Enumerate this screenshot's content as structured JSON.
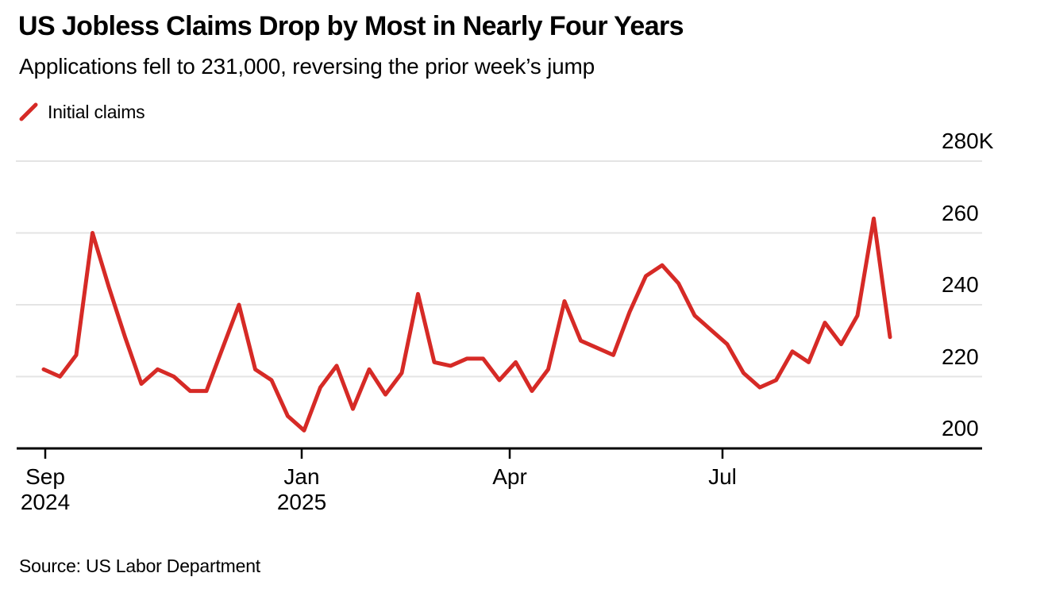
{
  "header": {
    "title": "US Jobless Claims Drop by Most in Nearly Four Years",
    "subtitle": "Applications fell to 231,000, reversing the prior week’s jump"
  },
  "legend": {
    "label": "Initial claims"
  },
  "source_note": "Source: US Labor Department",
  "colors": {
    "line": "#d62a26",
    "grid": "#e4e4e4",
    "axis": "#000000",
    "text": "#000000",
    "background": "#ffffff"
  },
  "chart_data": {
    "type": "line",
    "title": "US Jobless Claims Drop by Most in Nearly Four Years",
    "subtitle": "Applications fell to 231,000, reversing the prior week’s jump",
    "series_name": "Initial claims",
    "unit": "thousands of claims, weekly",
    "x_range": [
      "Sep 2024",
      "Sep 2025"
    ],
    "ylim": [
      200,
      280
    ],
    "grid": "horizontal",
    "legend_position": "top-left",
    "values": [
      222,
      220,
      226,
      260,
      245,
      231,
      218,
      222,
      220,
      216,
      216,
      228,
      240,
      222,
      219,
      209,
      205,
      217,
      223,
      211,
      222,
      215,
      221,
      243,
      224,
      223,
      225,
      225,
      219,
      224,
      216,
      222,
      241,
      230,
      228,
      226,
      238,
      248,
      251,
      246,
      237,
      233,
      229,
      221,
      217,
      219,
      227,
      224,
      235,
      229,
      237,
      264,
      231
    ],
    "last_value": 231,
    "yticks": [
      {
        "label": "280K",
        "value": 280
      },
      {
        "label": "260",
        "value": 260
      },
      {
        "label": "240",
        "value": 240
      },
      {
        "label": "220",
        "value": 220
      },
      {
        "label": "200",
        "value": 200
      }
    ],
    "xticks": [
      {
        "label": "Sep",
        "sublabel": "2024"
      },
      {
        "label": "Jan",
        "sublabel": "2025"
      },
      {
        "label": "Apr",
        "sublabel": ""
      },
      {
        "label": "Jul",
        "sublabel": ""
      }
    ]
  }
}
